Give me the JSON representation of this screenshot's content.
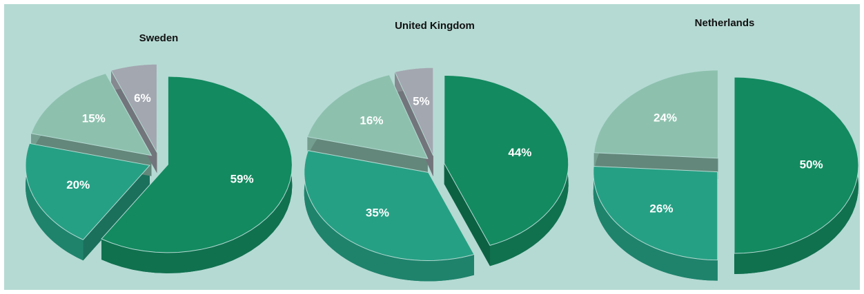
{
  "chart_data": [
    {
      "type": "pie",
      "title": "Sweden",
      "values": [
        59,
        20,
        15,
        6
      ],
      "value_labels": [
        "59%",
        "20%",
        "15%",
        "6%"
      ],
      "colors": [
        "#138a60",
        "#26a084",
        "#8dc1ae",
        "#a3a7b0"
      ]
    },
    {
      "type": "pie",
      "title": "United Kingdom",
      "values": [
        44,
        35,
        16,
        5
      ],
      "value_labels": [
        "44%",
        "35%",
        "16%",
        "5%"
      ],
      "colors": [
        "#138a60",
        "#26a084",
        "#8dc1ae",
        "#a3a7b0"
      ]
    },
    {
      "type": "pie",
      "title": "Netherlands",
      "values": [
        50,
        26,
        24
      ],
      "value_labels": [
        "50%",
        "26%",
        "24%"
      ],
      "colors": [
        "#138a60",
        "#26a084",
        "#8dc1ae"
      ]
    }
  ]
}
